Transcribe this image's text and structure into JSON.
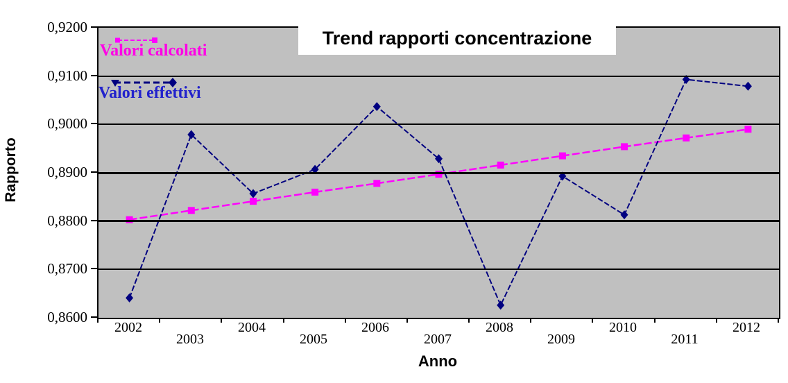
{
  "title": "Trend rapporti concentrazione",
  "x_axis_title": "Anno",
  "y_axis_title": "Rapporto",
  "legend": {
    "calcolati_label": "Valori calcolati",
    "effettivi_label": "Valori effettivi",
    "calcolati_text_color": "#ff00e6",
    "effettivi_text_color": "#2222cc"
  },
  "colors": {
    "plot_background": "#c0c0c0",
    "outer_background": "#ffffff",
    "grid_and_axis": "#000000",
    "series_calcolati": "#ff00ff",
    "series_effettivi": "#000080"
  },
  "chart_data": {
    "type": "line",
    "title": "Trend rapporti concentrazione",
    "xlabel": "Anno",
    "ylabel": "Rapporto",
    "categories": [
      "2002",
      "2003",
      "2004",
      "2005",
      "2006",
      "2007",
      "2008",
      "2009",
      "2010",
      "2011",
      "2012"
    ],
    "series": [
      {
        "name": "Valori calcolati",
        "color": "#ff00ff",
        "marker": "square",
        "line_style": "dashed",
        "values": [
          0.8803,
          0.8822,
          0.8841,
          0.886,
          0.8878,
          0.8897,
          0.8916,
          0.8935,
          0.8954,
          0.8972,
          0.899
        ]
      },
      {
        "name": "Valori effettivi",
        "color": "#000080",
        "marker": "diamond",
        "line_style": "dashed",
        "values": [
          0.8641,
          0.8979,
          0.8857,
          0.8907,
          0.9037,
          0.8929,
          0.8626,
          0.8893,
          0.8813,
          0.9093,
          0.9079
        ]
      }
    ],
    "ylim": [
      0.86,
      0.92
    ],
    "ytick_step": 0.01,
    "ytick_labels": [
      "0,8600",
      "0,8700",
      "0,8800",
      "0,8900",
      "0,9000",
      "0,9100",
      "0,9200"
    ],
    "emphasized_gridlines": [
      0.88,
      0.89
    ],
    "grid": true,
    "legend_position": "top-left-inside",
    "plot_background": "#c0c0c0"
  }
}
